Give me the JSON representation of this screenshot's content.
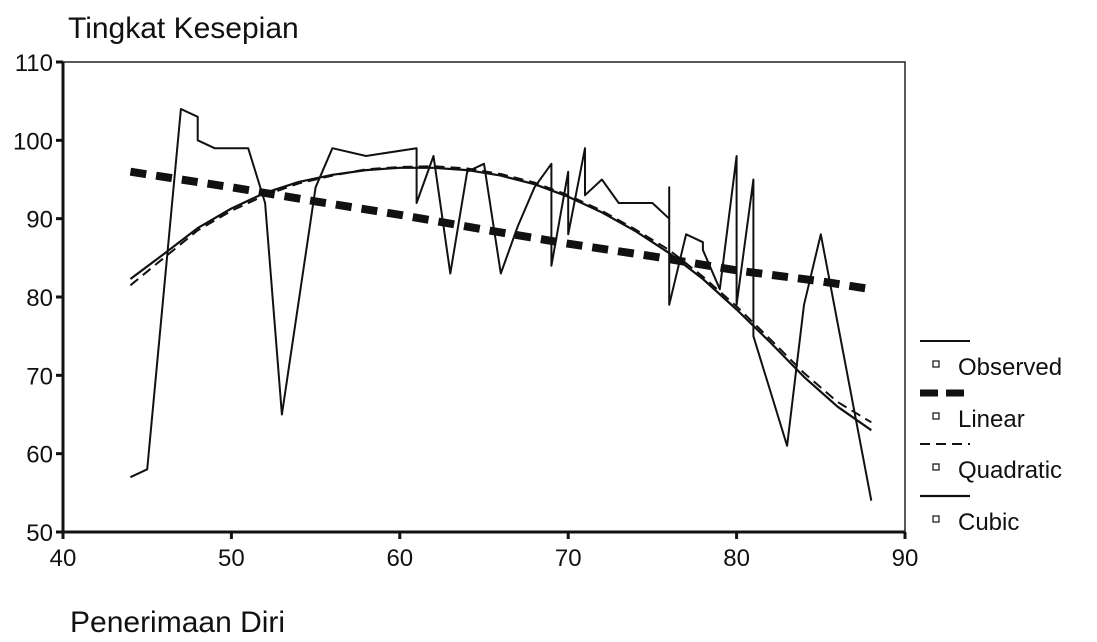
{
  "chart_data": {
    "type": "line",
    "title": "Tingkat Kesepian",
    "xlabel": "Penerimaan Diri",
    "ylabel": "Tingkat Kesepian",
    "xlim": [
      40,
      90
    ],
    "ylim": [
      50,
      110
    ],
    "x_ticks": [
      "40",
      "50",
      "60",
      "70",
      "80",
      "90"
    ],
    "y_ticks": [
      "50",
      "60",
      "70",
      "80",
      "90",
      "100",
      "110"
    ],
    "legend_position": "right",
    "series": [
      {
        "name": "Observed",
        "style": "solid-thin",
        "color": "#111111",
        "points": [
          [
            44,
            57
          ],
          [
            45,
            58
          ],
          [
            47,
            104
          ],
          [
            48,
            103
          ],
          [
            48,
            100
          ],
          [
            49,
            99
          ],
          [
            50,
            99
          ],
          [
            51,
            99
          ],
          [
            52,
            92
          ],
          [
            53,
            65
          ],
          [
            55,
            94
          ],
          [
            56,
            99
          ],
          [
            58,
            98
          ],
          [
            61,
            99
          ],
          [
            61,
            92
          ],
          [
            62,
            98
          ],
          [
            63,
            83
          ],
          [
            64,
            96
          ],
          [
            65,
            97
          ],
          [
            66,
            83
          ],
          [
            67,
            89
          ],
          [
            68,
            94
          ],
          [
            69,
            97
          ],
          [
            69,
            84
          ],
          [
            70,
            96
          ],
          [
            70,
            88
          ],
          [
            71,
            99
          ],
          [
            71,
            93
          ],
          [
            72,
            95
          ],
          [
            73,
            92
          ],
          [
            75,
            92
          ],
          [
            76,
            90
          ],
          [
            76,
            94
          ],
          [
            76,
            79
          ],
          [
            77,
            88
          ],
          [
            78,
            87
          ],
          [
            78,
            86
          ],
          [
            79,
            81
          ],
          [
            80,
            98
          ],
          [
            80,
            79
          ],
          [
            81,
            95
          ],
          [
            81,
            75
          ],
          [
            82,
            68
          ],
          [
            83,
            61
          ],
          [
            84,
            79
          ],
          [
            85,
            88
          ],
          [
            88,
            54
          ]
        ]
      },
      {
        "name": "Linear",
        "style": "thick-dashed",
        "color": "#111111",
        "points": [
          [
            44,
            96
          ],
          [
            50,
            94
          ],
          [
            55,
            92.2
          ],
          [
            60,
            90.5
          ],
          [
            65,
            88.6
          ],
          [
            70,
            86.8
          ],
          [
            75,
            85.2
          ],
          [
            80,
            83.4
          ],
          [
            85,
            82
          ],
          [
            88,
            81
          ]
        ]
      },
      {
        "name": "Quadratic",
        "style": "dashed",
        "color": "#111111",
        "points": [
          [
            44,
            81.5
          ],
          [
            46,
            85
          ],
          [
            48,
            88.5
          ],
          [
            50,
            91
          ],
          [
            52,
            93
          ],
          [
            54,
            94.5
          ],
          [
            56,
            95.5
          ],
          [
            58,
            96.3
          ],
          [
            60,
            96.6
          ],
          [
            62,
            96.7
          ],
          [
            64,
            96.4
          ],
          [
            66,
            95.7
          ],
          [
            68,
            94.6
          ],
          [
            70,
            93
          ],
          [
            72,
            91
          ],
          [
            74,
            88.6
          ],
          [
            76,
            86
          ],
          [
            78,
            82.6
          ],
          [
            80,
            78.8
          ],
          [
            82,
            74.6
          ],
          [
            84,
            70.3
          ],
          [
            86,
            66.6
          ],
          [
            88,
            64
          ]
        ]
      },
      {
        "name": "Cubic",
        "style": "solid",
        "color": "#111111",
        "points": [
          [
            44,
            82.3
          ],
          [
            46,
            85.5
          ],
          [
            48,
            88.8
          ],
          [
            50,
            91.3
          ],
          [
            52,
            93.3
          ],
          [
            54,
            94.7
          ],
          [
            56,
            95.6
          ],
          [
            58,
            96.2
          ],
          [
            60,
            96.5
          ],
          [
            62,
            96.5
          ],
          [
            64,
            96.2
          ],
          [
            66,
            95.5
          ],
          [
            68,
            94.4
          ],
          [
            70,
            92.8
          ],
          [
            72,
            90.8
          ],
          [
            74,
            88.4
          ],
          [
            76,
            85.6
          ],
          [
            78,
            82.3
          ],
          [
            80,
            78.4
          ],
          [
            82,
            74.2
          ],
          [
            84,
            69.8
          ],
          [
            86,
            66
          ],
          [
            88,
            63
          ]
        ]
      }
    ]
  },
  "legend": {
    "items": [
      "Observed",
      "Linear",
      "Quadratic",
      "Cubic"
    ]
  }
}
